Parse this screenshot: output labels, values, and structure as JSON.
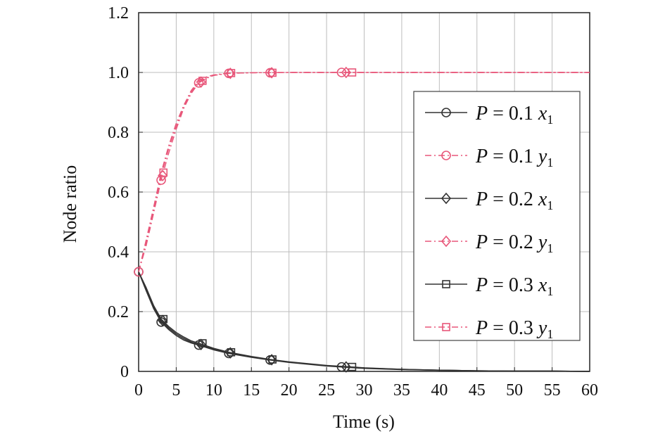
{
  "chart_data": {
    "type": "line",
    "title": "",
    "xlabel": "Time (s)",
    "ylabel": "Node ratio",
    "xlim": [
      0,
      60
    ],
    "ylim": [
      0,
      1.2
    ],
    "xticks": [
      0,
      5,
      10,
      15,
      20,
      25,
      30,
      35,
      40,
      45,
      50,
      55,
      60
    ],
    "xtick_labels": [
      "0",
      "5",
      "10",
      "15",
      "20",
      "25",
      "30",
      "35",
      "40",
      "45",
      "50",
      "55",
      "60"
    ],
    "yticks": [
      0,
      0.2,
      0.4,
      0.6,
      0.8,
      1.0,
      1.2
    ],
    "ytick_labels": [
      "0",
      "0.2",
      "0.4",
      "0.6",
      "0.8",
      "1.0",
      "1.2"
    ],
    "grid": true,
    "legend_position": "right",
    "colors": {
      "x_series": "#333333",
      "y_series": "#e8577a"
    },
    "series": [
      {
        "name": "P = 0.1 x1",
        "legend": {
          "p_label": "P",
          "eq": "= 0.1",
          "var": "x",
          "sub": "1"
        },
        "marker": "circle",
        "style": "solid",
        "color": "#333333",
        "x": [
          0,
          1,
          2,
          3,
          4,
          5,
          6,
          7,
          8,
          10,
          12,
          15,
          17.5,
          20,
          25,
          27.5,
          30,
          35,
          40,
          45,
          50,
          55,
          60
        ],
        "y": [
          0.333,
          0.27,
          0.21,
          0.165,
          0.14,
          0.12,
          0.105,
          0.095,
          0.088,
          0.072,
          0.06,
          0.047,
          0.038,
          0.03,
          0.018,
          0.014,
          0.01,
          0.006,
          0.004,
          0.002,
          0.001,
          0.001,
          0.0
        ],
        "markers_x": [
          0,
          3,
          8,
          12,
          17.5,
          27
        ],
        "markers_y": [
          0.333,
          0.165,
          0.088,
          0.06,
          0.038,
          0.015
        ]
      },
      {
        "name": "P = 0.1 y1",
        "legend": {
          "p_label": "P",
          "eq": "= 0.1",
          "var": "y",
          "sub": "1"
        },
        "marker": "circle",
        "style": "dashdot",
        "color": "#e8577a",
        "x": [
          0,
          1,
          2,
          3,
          4,
          5,
          6,
          7,
          8,
          9,
          10,
          12,
          15,
          20,
          30,
          40,
          50,
          60
        ],
        "y": [
          0.333,
          0.42,
          0.53,
          0.64,
          0.73,
          0.81,
          0.88,
          0.93,
          0.965,
          0.98,
          0.99,
          0.997,
          0.999,
          1.0,
          1.0,
          1.0,
          1.0,
          1.0
        ],
        "markers_x": [
          0,
          3,
          8,
          12,
          17.5,
          27
        ],
        "markers_y": [
          0.333,
          0.64,
          0.965,
          0.997,
          0.999,
          1.0
        ]
      },
      {
        "name": "P = 0.2 x1",
        "legend": {
          "p_label": "P",
          "eq": "= 0.2",
          "var": "x",
          "sub": "1"
        },
        "marker": "diamond",
        "style": "solid",
        "color": "#333333",
        "x": [
          0,
          1,
          2,
          3,
          4,
          5,
          6,
          7,
          8,
          10,
          12,
          15,
          17.5,
          20,
          25,
          27.5,
          30,
          35,
          40,
          45,
          50,
          55,
          60
        ],
        "y": [
          0.333,
          0.275,
          0.215,
          0.17,
          0.145,
          0.125,
          0.11,
          0.098,
          0.09,
          0.074,
          0.062,
          0.048,
          0.039,
          0.031,
          0.019,
          0.015,
          0.011,
          0.007,
          0.004,
          0.002,
          0.001,
          0.001,
          0.0
        ],
        "markers_x": [
          3.2,
          8.3,
          12.2,
          17.7,
          27.6
        ],
        "markers_y": [
          0.17,
          0.09,
          0.062,
          0.039,
          0.015
        ]
      },
      {
        "name": "P = 0.2 y1",
        "legend": {
          "p_label": "P",
          "eq": "= 0.2",
          "var": "y",
          "sub": "1"
        },
        "marker": "diamond",
        "style": "dashdot",
        "color": "#e8577a",
        "x": [
          0,
          1,
          2,
          3,
          4,
          5,
          6,
          7,
          8,
          9,
          10,
          12,
          15,
          20,
          30,
          40,
          50,
          60
        ],
        "y": [
          0.333,
          0.43,
          0.54,
          0.655,
          0.745,
          0.82,
          0.885,
          0.935,
          0.968,
          0.982,
          0.991,
          0.997,
          0.999,
          1.0,
          1.0,
          1.0,
          1.0,
          1.0
        ],
        "markers_x": [
          3.2,
          8.3,
          12.2,
          17.7,
          27.6
        ],
        "markers_y": [
          0.655,
          0.968,
          0.997,
          0.999,
          1.0
        ]
      },
      {
        "name": "P = 0.3 x1",
        "legend": {
          "p_label": "P",
          "eq": "= 0.3",
          "var": "x",
          "sub": "1"
        },
        "marker": "square",
        "style": "solid",
        "color": "#333333",
        "x": [
          0,
          1,
          2,
          3,
          4,
          5,
          6,
          7,
          8,
          10,
          12,
          15,
          17.5,
          20,
          25,
          27.5,
          30,
          35,
          40,
          45,
          50,
          55,
          60
        ],
        "y": [
          0.333,
          0.28,
          0.22,
          0.175,
          0.15,
          0.13,
          0.115,
          0.102,
          0.094,
          0.077,
          0.064,
          0.05,
          0.04,
          0.032,
          0.02,
          0.016,
          0.012,
          0.007,
          0.004,
          0.002,
          0.001,
          0.001,
          0.0
        ],
        "markers_x": [
          3.3,
          8.5,
          12.3,
          17.8,
          28.4
        ],
        "markers_y": [
          0.175,
          0.094,
          0.064,
          0.04,
          0.015
        ]
      },
      {
        "name": "P = 0.3 y1",
        "legend": {
          "p_label": "P",
          "eq": "= 0.3",
          "var": "y",
          "sub": "1"
        },
        "marker": "square",
        "style": "dashdot",
        "color": "#e8577a",
        "x": [
          0,
          1,
          2,
          3,
          4,
          5,
          6,
          7,
          8,
          9,
          10,
          12,
          15,
          20,
          30,
          40,
          50,
          60
        ],
        "y": [
          0.333,
          0.44,
          0.55,
          0.665,
          0.755,
          0.83,
          0.89,
          0.94,
          0.972,
          0.985,
          0.992,
          0.998,
          0.999,
          1.0,
          1.0,
          1.0,
          1.0,
          1.0
        ],
        "markers_x": [
          3.3,
          8.5,
          12.3,
          17.8,
          28.4
        ],
        "markers_y": [
          0.665,
          0.972,
          0.998,
          0.999,
          1.0
        ]
      }
    ]
  }
}
